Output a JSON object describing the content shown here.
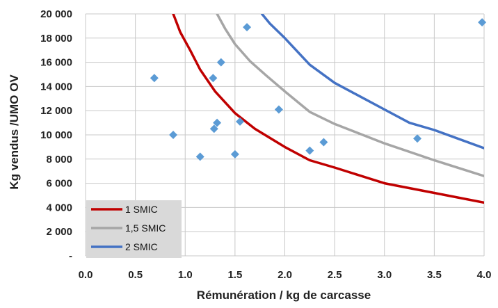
{
  "chart_data": {
    "type": "scatter",
    "title": "",
    "xlabel": "Rémunération / kg de carcasse",
    "ylabel": "Kg vendus /UMO OV",
    "xlim": [
      0.0,
      4.0
    ],
    "ylim": [
      0,
      20000
    ],
    "x_ticks": [
      0.0,
      0.5,
      1.0,
      1.5,
      2.0,
      2.5,
      3.0,
      3.5,
      4.0
    ],
    "x_tick_labels": [
      "0.0",
      "0.5",
      "1.0",
      "1.5",
      "2.0",
      "2.5",
      "3.0",
      "3.5",
      "4.0"
    ],
    "y_ticks": [
      0,
      2000,
      4000,
      6000,
      8000,
      10000,
      12000,
      14000,
      16000,
      18000,
      20000
    ],
    "y_tick_labels": [
      "-",
      "2 000",
      "4 000",
      "6 000",
      "8 000",
      "10 000",
      "12 000",
      "14 000",
      "16 000",
      "18 000",
      "20 000"
    ],
    "grid": true,
    "legend": {
      "placement": "bottom-left"
    },
    "points": {
      "color": "#5b9bd5",
      "marker": "diamond",
      "x": [
        0.69,
        0.88,
        1.15,
        1.28,
        1.29,
        1.32,
        1.36,
        1.5,
        1.55,
        1.62,
        1.94,
        2.25,
        2.39,
        3.33,
        3.98
      ],
      "y": [
        14700,
        10000,
        8200,
        14700,
        10500,
        11000,
        16000,
        8400,
        11100,
        18900,
        12100,
        8700,
        9400,
        9700,
        19300
      ]
    },
    "series": [
      {
        "name": "1 SMIC",
        "color": "#c00000",
        "x": [
          0.88,
          0.95,
          1.05,
          1.15,
          1.3,
          1.5,
          1.7,
          2.0,
          2.25,
          2.5,
          3.0,
          3.5,
          4.0
        ],
        "y": [
          20000,
          18500,
          17000,
          15400,
          13600,
          11800,
          10500,
          9000,
          7900,
          7300,
          6000,
          5200,
          4400
        ]
      },
      {
        "name": "1,5 SMIC",
        "color": "#a6a6a6",
        "x": [
          1.32,
          1.4,
          1.5,
          1.65,
          1.8,
          2.0,
          2.25,
          2.5,
          3.0,
          3.5,
          4.0
        ],
        "y": [
          20000,
          18800,
          17500,
          16100,
          15000,
          13600,
          11900,
          10900,
          9300,
          7900,
          6600
        ]
      },
      {
        "name": "2 SMIC",
        "color": "#4472c4",
        "x": [
          1.77,
          1.85,
          2.0,
          2.25,
          2.5,
          2.75,
          3.0,
          3.25,
          3.5,
          4.0
        ],
        "y": [
          20000,
          19200,
          18000,
          15800,
          14300,
          13200,
          12100,
          11000,
          10400,
          8900
        ]
      }
    ]
  }
}
